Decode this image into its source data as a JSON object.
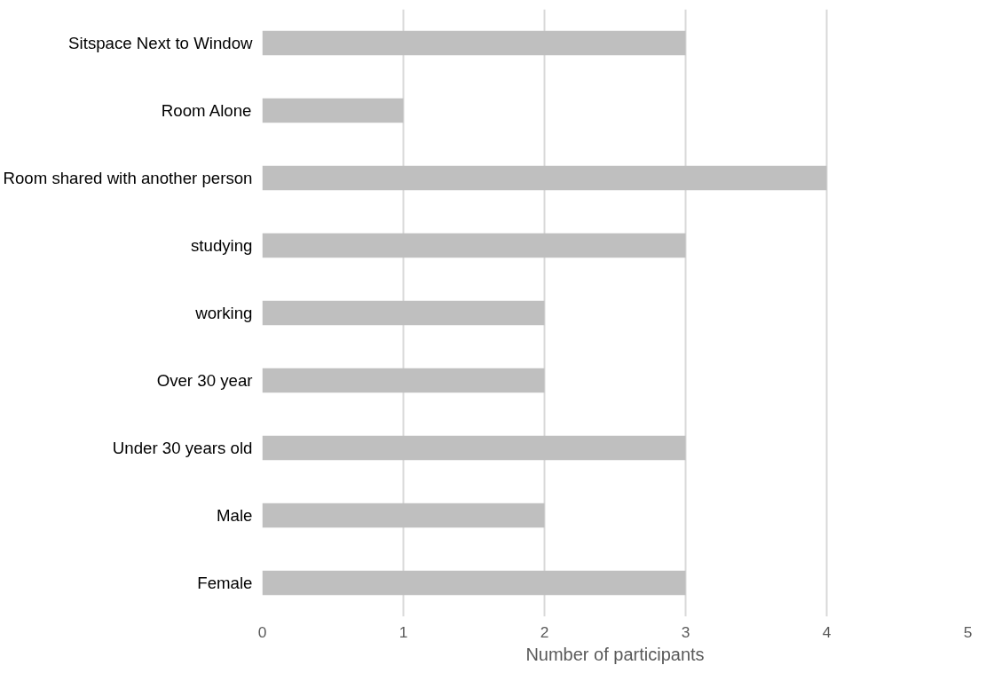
{
  "chart_data": {
    "type": "bar",
    "orientation": "horizontal",
    "xlabel": "Number of participants",
    "categories": [
      "Sitspace Next to Window",
      "Room Alone",
      "Room shared with another person",
      "studying",
      "working",
      "Over 30 year",
      "Under 30 years old",
      "Male",
      "Female"
    ],
    "values": [
      3,
      1,
      4,
      3,
      2,
      2,
      3,
      2,
      3
    ],
    "color": "#bfbfbf",
    "xlim": [
      0,
      5
    ],
    "xticks": [
      0,
      1,
      2,
      3,
      4,
      5
    ],
    "grid": "x"
  }
}
